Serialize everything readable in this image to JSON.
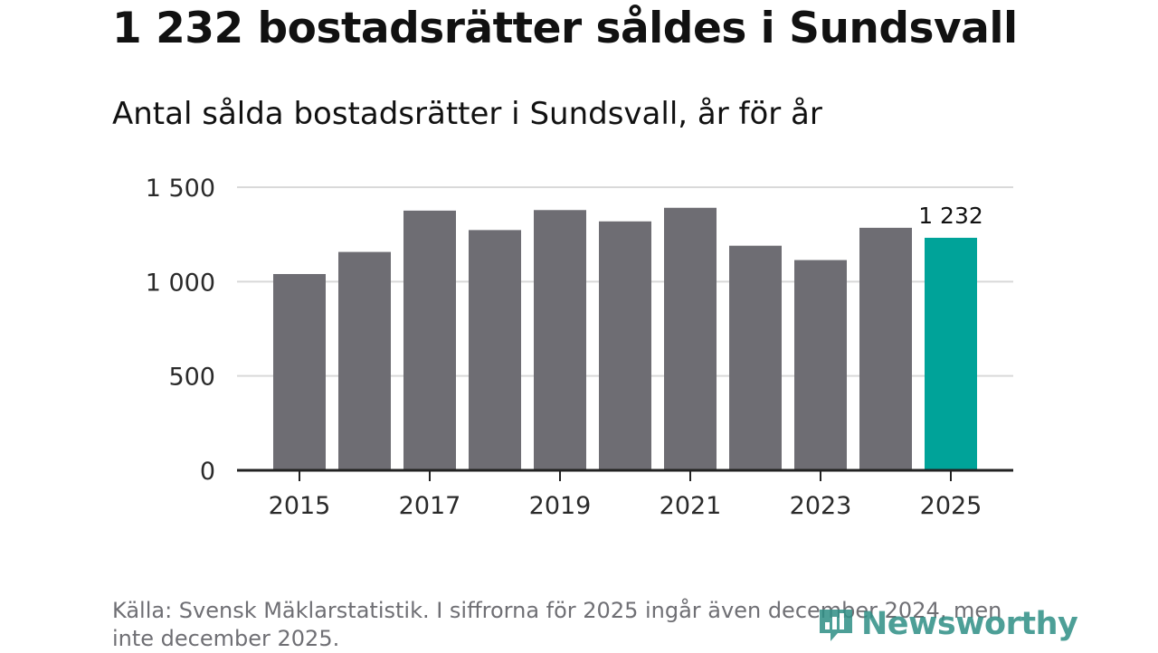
{
  "headline": "1 232 bostadsrätter såldes i Sundsvall",
  "subtitle": "Antal sålda bostadsrätter i Sundsvall, år för år",
  "source": "Källa: Svensk Mäklarstatistik. I siffrorna för 2025 ingår även december 2024, men inte december 2025.",
  "brand": "Newsworthy",
  "colors": {
    "bar": "#6e6d73",
    "highlight": "#00a399",
    "grid": "#d9d9d9",
    "axis": "#222222",
    "brand": "#2f8f86"
  },
  "chart_data": {
    "type": "bar",
    "title": "Antal sålda bostadsrätter i Sundsvall, år för år",
    "xlabel": "",
    "ylabel": "",
    "categories": [
      "2015",
      "2016",
      "2017",
      "2018",
      "2019",
      "2020",
      "2021",
      "2022",
      "2023",
      "2024",
      "2025"
    ],
    "values": [
      1040,
      1157,
      1376,
      1273,
      1379,
      1319,
      1391,
      1190,
      1114,
      1285,
      1232
    ],
    "ylim": [
      0,
      1500
    ],
    "yticks": [
      0,
      500,
      1000,
      1500
    ],
    "ytick_labels": [
      "0",
      "500",
      "1 000",
      "1 500"
    ],
    "xtick_labels": [
      "2015",
      "2017",
      "2019",
      "2021",
      "2023",
      "2025"
    ],
    "highlight_index": 10,
    "data_label": "1 232"
  }
}
